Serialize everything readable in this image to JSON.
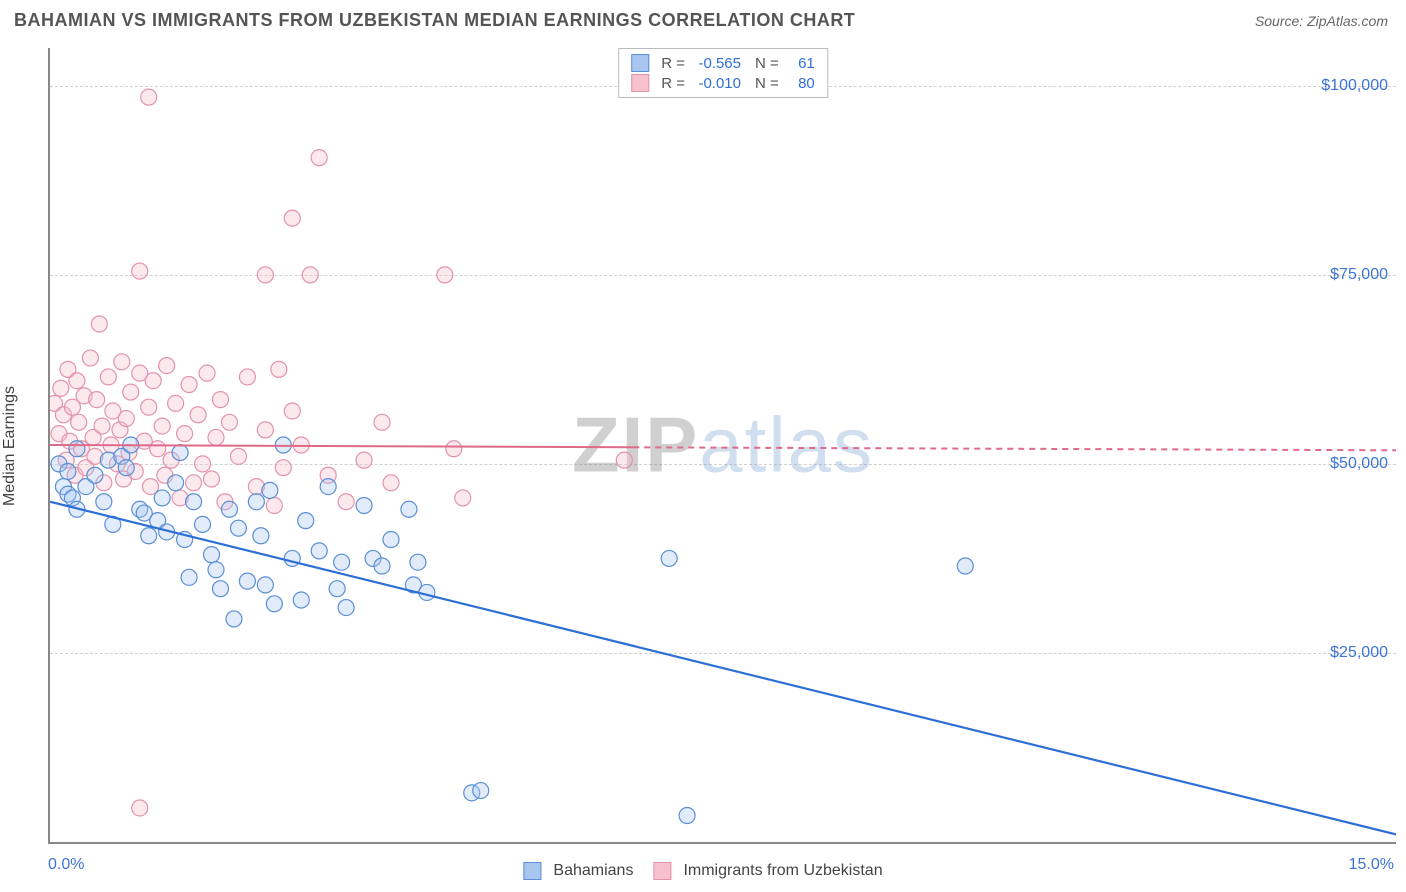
{
  "header": {
    "title": "BAHAMIAN VS IMMIGRANTS FROM UZBEKISTAN MEDIAN EARNINGS CORRELATION CHART",
    "source_prefix": "Source: ",
    "source_name": "ZipAtlas.com"
  },
  "ylabel": "Median Earnings",
  "watermark": {
    "part1": "ZIP",
    "part2": "atlas"
  },
  "chart": {
    "type": "scatter",
    "background_color": "#ffffff",
    "grid_color": "#d0d0d0",
    "axis_color": "#888888",
    "xlim": [
      0,
      15
    ],
    "ylim": [
      0,
      105000
    ],
    "xticks": [
      {
        "value": 0,
        "label": "0.0%"
      },
      {
        "value": 15,
        "label": "15.0%"
      }
    ],
    "yticks": [
      {
        "value": 25000,
        "label": "$25,000"
      },
      {
        "value": 50000,
        "label": "$50,000"
      },
      {
        "value": 75000,
        "label": "$75,000"
      },
      {
        "value": 100000,
        "label": "$100,000"
      }
    ],
    "marker_radius": 8,
    "marker_fill_opacity": 0.35,
    "marker_stroke_width": 1.2,
    "series": [
      {
        "name": "Bahamians",
        "color_fill": "#a8c6f0",
        "color_stroke": "#5a8fd6",
        "R": "-0.565",
        "N": "61",
        "trend": {
          "x1": 0,
          "y1": 45000,
          "x2": 15,
          "y2": 1000,
          "stroke": "#2e6fd6",
          "width": 2.2,
          "dash_after_x": null
        },
        "points": [
          [
            0.1,
            50000
          ],
          [
            0.2,
            49000
          ],
          [
            0.15,
            47000
          ],
          [
            0.2,
            46000
          ],
          [
            0.25,
            45500
          ],
          [
            0.3,
            52000
          ],
          [
            0.4,
            47000
          ],
          [
            0.5,
            48500
          ],
          [
            0.6,
            45000
          ],
          [
            0.65,
            50500
          ],
          [
            0.7,
            42000
          ],
          [
            0.8,
            51000
          ],
          [
            0.85,
            49500
          ],
          [
            0.9,
            52500
          ],
          [
            1.0,
            44000
          ],
          [
            1.05,
            43500
          ],
          [
            1.1,
            40500
          ],
          [
            1.2,
            42500
          ],
          [
            1.25,
            45500
          ],
          [
            1.3,
            41000
          ],
          [
            1.4,
            47500
          ],
          [
            1.45,
            51500
          ],
          [
            1.5,
            40000
          ],
          [
            1.55,
            35000
          ],
          [
            1.6,
            45000
          ],
          [
            1.7,
            42000
          ],
          [
            1.8,
            38000
          ],
          [
            1.85,
            36000
          ],
          [
            1.9,
            33500
          ],
          [
            2.0,
            44000
          ],
          [
            2.05,
            29500
          ],
          [
            2.1,
            41500
          ],
          [
            2.2,
            34500
          ],
          [
            2.3,
            45000
          ],
          [
            2.35,
            40500
          ],
          [
            2.4,
            34000
          ],
          [
            2.45,
            46500
          ],
          [
            2.5,
            31500
          ],
          [
            2.6,
            52500
          ],
          [
            2.7,
            37500
          ],
          [
            2.8,
            32000
          ],
          [
            2.85,
            42500
          ],
          [
            3.0,
            38500
          ],
          [
            3.1,
            47000
          ],
          [
            3.2,
            33500
          ],
          [
            3.25,
            37000
          ],
          [
            3.3,
            31000
          ],
          [
            3.5,
            44500
          ],
          [
            3.6,
            37500
          ],
          [
            3.7,
            36500
          ],
          [
            3.8,
            40000
          ],
          [
            4.0,
            44000
          ],
          [
            4.05,
            34000
          ],
          [
            4.1,
            37000
          ],
          [
            4.2,
            33000
          ],
          [
            4.7,
            6500
          ],
          [
            4.8,
            6800
          ],
          [
            6.9,
            37500
          ],
          [
            7.1,
            3500
          ],
          [
            10.2,
            36500
          ],
          [
            0.3,
            44000
          ]
        ]
      },
      {
        "name": "Immigrants from Uzbekistan",
        "color_fill": "#f6c0cd",
        "color_stroke": "#e393ab",
        "R": "-0.010",
        "N": "80",
        "trend": {
          "x1": 0,
          "y1": 52500,
          "x2": 15,
          "y2": 51800,
          "stroke": "#e06a8a",
          "width": 2,
          "dash_after_x": 6.5
        },
        "points": [
          [
            0.05,
            58000
          ],
          [
            0.1,
            54000
          ],
          [
            0.12,
            60000
          ],
          [
            0.15,
            56500
          ],
          [
            0.18,
            50500
          ],
          [
            0.2,
            62500
          ],
          [
            0.22,
            53000
          ],
          [
            0.25,
            57500
          ],
          [
            0.28,
            48500
          ],
          [
            0.3,
            61000
          ],
          [
            0.32,
            55500
          ],
          [
            0.35,
            52000
          ],
          [
            0.38,
            59000
          ],
          [
            0.4,
            49500
          ],
          [
            0.45,
            64000
          ],
          [
            0.48,
            53500
          ],
          [
            0.5,
            51000
          ],
          [
            0.52,
            58500
          ],
          [
            0.55,
            68500
          ],
          [
            0.58,
            55000
          ],
          [
            0.6,
            47500
          ],
          [
            0.65,
            61500
          ],
          [
            0.68,
            52500
          ],
          [
            0.7,
            57000
          ],
          [
            0.75,
            50000
          ],
          [
            0.78,
            54500
          ],
          [
            0.8,
            63500
          ],
          [
            0.82,
            48000
          ],
          [
            0.85,
            56000
          ],
          [
            0.88,
            51500
          ],
          [
            0.9,
            59500
          ],
          [
            0.95,
            49000
          ],
          [
            1.0,
            62000
          ],
          [
            1.0,
            75500
          ],
          [
            1.05,
            53000
          ],
          [
            1.1,
            57500
          ],
          [
            1.1,
            98500
          ],
          [
            1.12,
            47000
          ],
          [
            1.15,
            61000
          ],
          [
            1.2,
            52000
          ],
          [
            1.25,
            55000
          ],
          [
            1.28,
            48500
          ],
          [
            1.3,
            63000
          ],
          [
            1.35,
            50500
          ],
          [
            1.4,
            58000
          ],
          [
            1.45,
            45500
          ],
          [
            1.5,
            54000
          ],
          [
            1.55,
            60500
          ],
          [
            1.6,
            47500
          ],
          [
            1.65,
            56500
          ],
          [
            1.7,
            50000
          ],
          [
            1.75,
            62000
          ],
          [
            1.8,
            48000
          ],
          [
            1.85,
            53500
          ],
          [
            1.9,
            58500
          ],
          [
            1.95,
            45000
          ],
          [
            2.0,
            55500
          ],
          [
            2.1,
            51000
          ],
          [
            2.2,
            61500
          ],
          [
            2.3,
            47000
          ],
          [
            2.4,
            54500
          ],
          [
            2.4,
            75000
          ],
          [
            2.5,
            44500
          ],
          [
            2.55,
            62500
          ],
          [
            2.6,
            49500
          ],
          [
            2.7,
            57000
          ],
          [
            2.7,
            82500
          ],
          [
            2.8,
            52500
          ],
          [
            2.9,
            75000
          ],
          [
            3.0,
            90500
          ],
          [
            3.1,
            48500
          ],
          [
            3.3,
            45000
          ],
          [
            3.5,
            50500
          ],
          [
            3.7,
            55500
          ],
          [
            3.8,
            47500
          ],
          [
            4.4,
            75000
          ],
          [
            4.5,
            52000
          ],
          [
            4.6,
            45500
          ],
          [
            6.4,
            50500
          ],
          [
            1.0,
            4500
          ]
        ]
      }
    ]
  },
  "legend_labels": {
    "R": "R =",
    "N": "N ="
  }
}
